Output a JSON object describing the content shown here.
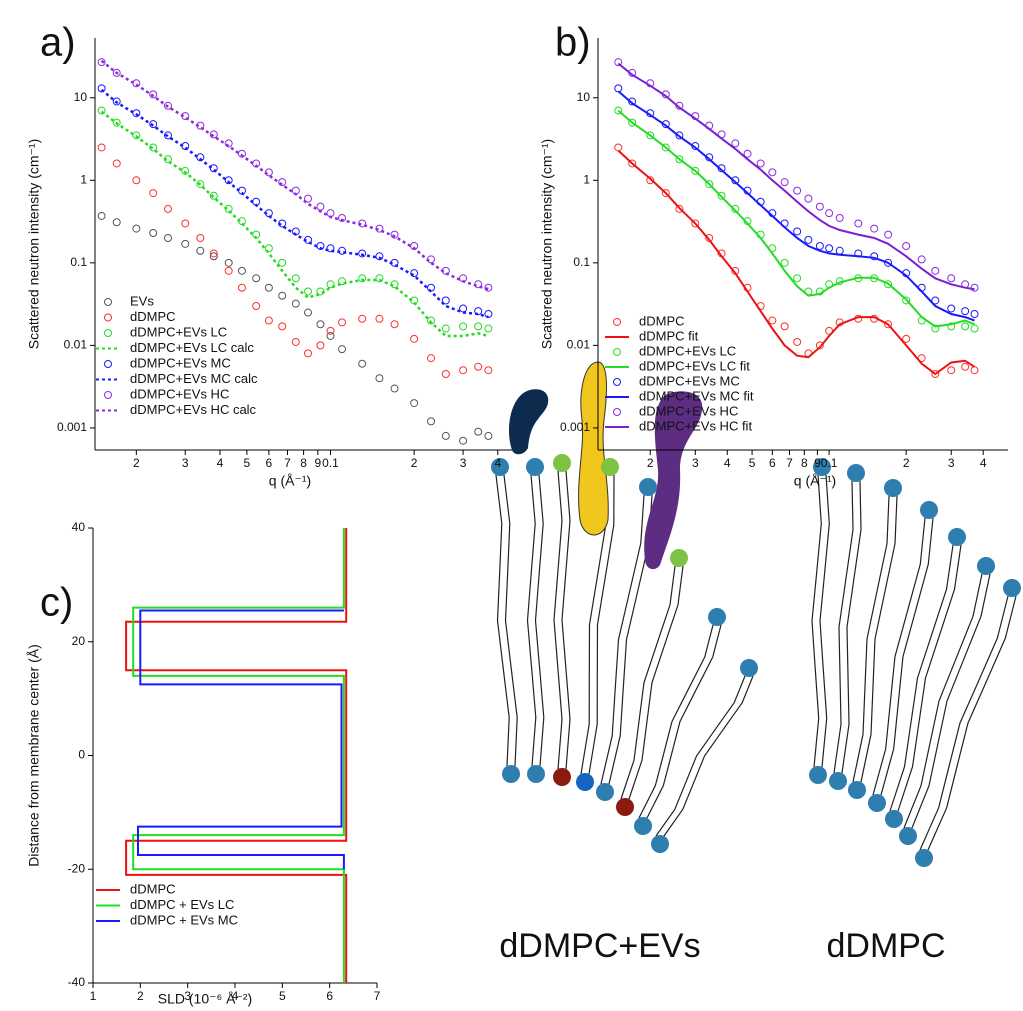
{
  "chart_data": [
    {
      "type": "scatter",
      "panel_label": "a)",
      "x_label": "q (Å⁻¹)",
      "y_label": "Scattered neutron intensity (cm⁻¹)",
      "log_x": true,
      "log_y": true,
      "xlim": [
        0.0142,
        0.45
      ],
      "ylim": [
        0.00054,
        53
      ],
      "xticks": [
        {
          "value": 0.02,
          "label": "2"
        },
        {
          "value": 0.03,
          "label": "3"
        },
        {
          "value": 0.04,
          "label": "4"
        },
        {
          "value": 0.05,
          "label": "5"
        },
        {
          "value": 0.06,
          "label": "6"
        },
        {
          "value": 0.07,
          "label": "7"
        },
        {
          "value": 0.08,
          "label": "8"
        },
        {
          "value": 0.09,
          "label": "9"
        },
        0.1,
        {
          "value": 0.2,
          "label": "2"
        },
        {
          "value": 0.3,
          "label": "3"
        },
        {
          "value": 0.4,
          "label": "4"
        }
      ],
      "yticks": [
        0.001,
        0.01,
        0.1,
        1,
        10
      ],
      "legend": "lower left",
      "x": [
        0.015,
        0.017,
        0.02,
        0.023,
        0.026,
        0.03,
        0.034,
        0.038,
        0.043,
        0.048,
        0.054,
        0.06,
        0.067,
        0.075,
        0.083,
        0.092,
        0.1,
        0.11,
        0.13,
        0.15,
        0.17,
        0.2,
        0.23,
        0.26,
        0.3,
        0.34,
        0.37
      ],
      "series": [
        {
          "name": "EVs",
          "color": "#555555",
          "style": "markers",
          "values": [
            0.37,
            0.31,
            0.26,
            0.23,
            0.2,
            0.17,
            0.14,
            0.12,
            0.1,
            0.08,
            0.065,
            0.05,
            0.04,
            0.032,
            0.025,
            0.018,
            0.013,
            0.009,
            0.006,
            0.004,
            0.003,
            0.002,
            0.0012,
            0.0008,
            0.0007,
            0.0009,
            0.0008
          ]
        },
        {
          "name": "dDMPC",
          "color": "#ff3030",
          "style": "markers",
          "values": [
            2.5,
            1.6,
            1.0,
            0.7,
            0.45,
            0.3,
            0.2,
            0.13,
            0.08,
            0.05,
            0.03,
            0.02,
            0.017,
            0.011,
            0.008,
            0.01,
            0.015,
            0.019,
            0.021,
            0.021,
            0.018,
            0.012,
            0.007,
            0.0045,
            0.005,
            0.0055,
            0.005
          ]
        },
        {
          "name": "dDMPC+EVs LC",
          "color": "#22dd22",
          "style": "markers",
          "values": [
            7,
            5,
            3.5,
            2.5,
            1.8,
            1.3,
            0.9,
            0.65,
            0.45,
            0.32,
            0.22,
            0.15,
            0.1,
            0.065,
            0.045,
            0.045,
            0.055,
            0.06,
            0.065,
            0.065,
            0.055,
            0.035,
            0.02,
            0.016,
            0.017,
            0.017,
            0.016
          ]
        },
        {
          "name": "dDMPC+EVs LC calc",
          "color": "#22dd22",
          "style": "dotted",
          "values": [
            6.8,
            4.9,
            3.4,
            2.4,
            1.7,
            1.25,
            0.88,
            0.62,
            0.43,
            0.3,
            0.2,
            0.13,
            0.08,
            0.05,
            0.038,
            0.042,
            0.05,
            0.056,
            0.062,
            0.062,
            0.052,
            0.033,
            0.019,
            0.013,
            0.013,
            0.014,
            0.013
          ]
        },
        {
          "name": "dDMPC+EVs MC",
          "color": "#1a1aff",
          "style": "markers",
          "values": [
            13,
            9,
            6.5,
            4.8,
            3.5,
            2.6,
            1.9,
            1.4,
            1.0,
            0.75,
            0.55,
            0.4,
            0.3,
            0.24,
            0.19,
            0.16,
            0.15,
            0.14,
            0.13,
            0.12,
            0.1,
            0.075,
            0.05,
            0.035,
            0.028,
            0.026,
            0.024
          ]
        },
        {
          "name": "dDMPC+EVs MC calc",
          "color": "#1a1aff",
          "style": "dotted",
          "values": [
            12.5,
            8.8,
            6.3,
            4.6,
            3.4,
            2.5,
            1.8,
            1.35,
            0.95,
            0.7,
            0.5,
            0.37,
            0.28,
            0.22,
            0.18,
            0.15,
            0.14,
            0.135,
            0.125,
            0.115,
            0.095,
            0.07,
            0.045,
            0.03,
            0.025,
            0.024,
            0.022
          ]
        },
        {
          "name": "dDMPC+EVs HC",
          "color": "#8a2be2",
          "style": "markers",
          "values": [
            27,
            20,
            15,
            11,
            8,
            6,
            4.6,
            3.6,
            2.8,
            2.1,
            1.6,
            1.25,
            0.95,
            0.75,
            0.6,
            0.48,
            0.4,
            0.35,
            0.3,
            0.26,
            0.22,
            0.16,
            0.11,
            0.08,
            0.065,
            0.055,
            0.05
          ]
        },
        {
          "name": "dDMPC+EVs HC calc",
          "color": "#8a2be2",
          "style": "dotted",
          "values": [
            28,
            20,
            14.5,
            10.5,
            7.8,
            5.8,
            4.4,
            3.4,
            2.6,
            2.0,
            1.5,
            1.15,
            0.88,
            0.68,
            0.52,
            0.42,
            0.36,
            0.33,
            0.29,
            0.25,
            0.21,
            0.15,
            0.1,
            0.075,
            0.06,
            0.052,
            0.048
          ]
        }
      ]
    },
    {
      "type": "scatter",
      "panel_label": "b)",
      "x_label": "q (Å⁻¹)",
      "y_label": "Scattered neutron intensity (cm⁻¹)",
      "log_x": true,
      "log_y": true,
      "xlim": [
        0.0125,
        0.5
      ],
      "ylim": [
        0.00054,
        53
      ],
      "xticks": [
        {
          "value": 0.02,
          "label": "2"
        },
        {
          "value": 0.03,
          "label": "3"
        },
        {
          "value": 0.04,
          "label": "4"
        },
        {
          "value": 0.05,
          "label": "5"
        },
        {
          "value": 0.06,
          "label": "6"
        },
        {
          "value": 0.07,
          "label": "7"
        },
        {
          "value": 0.08,
          "label": "8"
        },
        {
          "value": 0.09,
          "label": "9"
        },
        0.1,
        {
          "value": 0.2,
          "label": "2"
        },
        {
          "value": 0.3,
          "label": "3"
        },
        {
          "value": 0.4,
          "label": "4"
        }
      ],
      "yticks": [
        0.001,
        0.01,
        0.1,
        1,
        10
      ],
      "legend": "lower left",
      "x": [
        0.015,
        0.017,
        0.02,
        0.023,
        0.026,
        0.03,
        0.034,
        0.038,
        0.043,
        0.048,
        0.054,
        0.06,
        0.067,
        0.075,
        0.083,
        0.092,
        0.1,
        0.11,
        0.13,
        0.15,
        0.17,
        0.2,
        0.23,
        0.26,
        0.3,
        0.34,
        0.37
      ],
      "series": [
        {
          "name": "dDMPC",
          "color": "#ff3030",
          "style": "markers",
          "values": [
            2.5,
            1.6,
            1.0,
            0.7,
            0.45,
            0.3,
            0.2,
            0.13,
            0.08,
            0.05,
            0.03,
            0.02,
            0.017,
            0.011,
            0.008,
            0.01,
            0.015,
            0.019,
            0.021,
            0.021,
            0.018,
            0.012,
            0.007,
            0.0045,
            0.005,
            0.0055,
            0.005
          ]
        },
        {
          "name": "dDMPC fit",
          "color": "#ee1111",
          "style": "solid",
          "values": [
            2.3,
            1.6,
            1.05,
            0.7,
            0.46,
            0.3,
            0.19,
            0.12,
            0.075,
            0.045,
            0.026,
            0.016,
            0.01,
            0.0075,
            0.0072,
            0.0095,
            0.013,
            0.018,
            0.022,
            0.022,
            0.018,
            0.01,
            0.006,
            0.0045,
            0.0062,
            0.0065,
            0.0055
          ]
        },
        {
          "name": "dDMPC+EVs LC",
          "color": "#22dd22",
          "style": "markers",
          "values": [
            7,
            5,
            3.5,
            2.5,
            1.8,
            1.3,
            0.9,
            0.65,
            0.45,
            0.32,
            0.22,
            0.15,
            0.1,
            0.065,
            0.045,
            0.045,
            0.055,
            0.06,
            0.065,
            0.065,
            0.055,
            0.035,
            0.02,
            0.016,
            0.017,
            0.017,
            0.016
          ]
        },
        {
          "name": "dDMPC+EVs LC fit",
          "color": "#22dd22",
          "style": "solid",
          "values": [
            7,
            5,
            3.5,
            2.5,
            1.8,
            1.3,
            0.9,
            0.63,
            0.43,
            0.3,
            0.2,
            0.13,
            0.08,
            0.052,
            0.04,
            0.042,
            0.05,
            0.058,
            0.066,
            0.066,
            0.056,
            0.036,
            0.022,
            0.017,
            0.018,
            0.02,
            0.018
          ]
        },
        {
          "name": "dDMPC+EVs MC",
          "color": "#1a1aff",
          "style": "markers",
          "values": [
            13,
            9,
            6.5,
            4.8,
            3.5,
            2.6,
            1.9,
            1.4,
            1.0,
            0.75,
            0.55,
            0.4,
            0.3,
            0.24,
            0.19,
            0.16,
            0.15,
            0.14,
            0.13,
            0.12,
            0.1,
            0.075,
            0.05,
            0.035,
            0.028,
            0.026,
            0.024
          ]
        },
        {
          "name": "dDMPC+EVs MC fit",
          "color": "#1a1aff",
          "style": "solid",
          "values": [
            12,
            8.6,
            6.2,
            4.6,
            3.4,
            2.5,
            1.8,
            1.33,
            0.95,
            0.7,
            0.5,
            0.37,
            0.27,
            0.2,
            0.16,
            0.14,
            0.13,
            0.125,
            0.12,
            0.115,
            0.1,
            0.07,
            0.045,
            0.03,
            0.024,
            0.022,
            0.02
          ]
        },
        {
          "name": "dDMPC+EVs HC",
          "color": "#8a2be2",
          "style": "markers",
          "values": [
            27,
            20,
            15,
            11,
            8,
            6,
            4.6,
            3.6,
            2.8,
            2.1,
            1.6,
            1.25,
            0.95,
            0.75,
            0.6,
            0.48,
            0.4,
            0.35,
            0.3,
            0.26,
            0.22,
            0.16,
            0.11,
            0.08,
            0.065,
            0.055,
            0.05
          ]
        },
        {
          "name": "dDMPC+EVs HC fit",
          "color": "#7a1fd6",
          "style": "solid",
          "values": [
            26,
            19,
            14,
            10.5,
            7.6,
            5.6,
            4.2,
            3.2,
            2.4,
            1.8,
            1.35,
            1.0,
            0.75,
            0.55,
            0.42,
            0.33,
            0.28,
            0.25,
            0.22,
            0.2,
            0.17,
            0.12,
            0.085,
            0.065,
            0.055,
            0.05,
            0.048
          ]
        }
      ]
    },
    {
      "type": "line",
      "panel_label": "c)",
      "x_label": "SLD (10⁻⁶ Å⁻²)",
      "y_label": "Distance from membrane center (Å)",
      "xlim": [
        1,
        7
      ],
      "ylim": [
        -40,
        40
      ],
      "xticks": [
        1,
        2,
        3,
        4,
        5,
        6,
        7
      ],
      "yticks": [
        -40,
        -20,
        0,
        20,
        40
      ],
      "legend": "lower left",
      "series": [
        {
          "name": "dDMPC",
          "color": "#ee1111",
          "x": [
            6.35,
            6.35,
            1.7,
            1.7,
            6.35,
            6.35,
            1.7,
            1.7,
            6.35,
            6.35
          ],
          "values": [
            40,
            23.5,
            23.5,
            15,
            15,
            -15,
            -15,
            -21,
            -21,
            -40
          ]
        },
        {
          "name": "dDMPC + EVs LC",
          "color": "#22dd22",
          "x": [
            6.3,
            6.3,
            1.85,
            1.85,
            6.3,
            6.3,
            1.85,
            1.85,
            6.3,
            6.3
          ],
          "values": [
            40,
            26,
            26,
            14,
            14,
            -14,
            -14,
            -20,
            -20,
            -40
          ]
        },
        {
          "name": "dDMPC + EVs MC",
          "color": "#1a1aff",
          "x": [
            6.3,
            6.3,
            2.0,
            2.0,
            6.25,
            6.25,
            1.95,
            1.95,
            6.3,
            6.3
          ],
          "values": [
            25.5,
            25.5,
            25.5,
            12.5,
            12.5,
            -12.5,
            -12.5,
            -17.5,
            -17.5,
            -20
          ]
        }
      ]
    }
  ],
  "diagram": {
    "labels": [
      "dDMPC+EVs",
      "dDMPC"
    ]
  }
}
